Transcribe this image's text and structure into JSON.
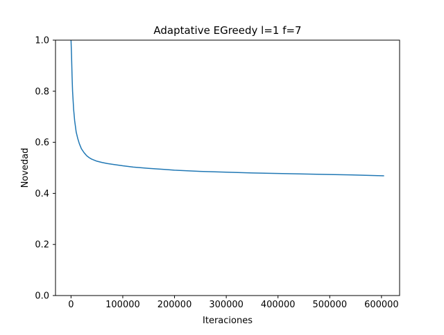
{
  "chart_data": {
    "type": "line",
    "title": "Adaptative EGreedy l=1 f=7",
    "xlabel": "Iteraciones",
    "ylabel": "Novedad",
    "xlim": [
      -30000,
      635000
    ],
    "ylim": [
      0.0,
      1.0
    ],
    "xticks": [
      0,
      100000,
      200000,
      300000,
      400000,
      500000,
      600000
    ],
    "yticks": [
      0.0,
      0.2,
      0.4,
      0.6,
      0.8,
      1.0
    ],
    "grid": false,
    "series": [
      {
        "color": "#1f77b4",
        "x": [
          0,
          1000,
          2000,
          3000,
          5000,
          7000,
          10000,
          13000,
          16000,
          20000,
          25000,
          30000,
          35000,
          40000,
          50000,
          60000,
          70000,
          80000,
          100000,
          120000,
          150000,
          180000,
          200000,
          250000,
          300000,
          350000,
          400000,
          450000,
          500000,
          550000,
          605000
        ],
        "y": [
          1.0,
          0.94,
          0.86,
          0.8,
          0.73,
          0.685,
          0.64,
          0.615,
          0.595,
          0.575,
          0.56,
          0.548,
          0.54,
          0.534,
          0.526,
          0.521,
          0.517,
          0.514,
          0.508,
          0.503,
          0.498,
          0.494,
          0.491,
          0.486,
          0.483,
          0.48,
          0.478,
          0.476,
          0.474,
          0.472,
          0.469
        ]
      }
    ]
  }
}
